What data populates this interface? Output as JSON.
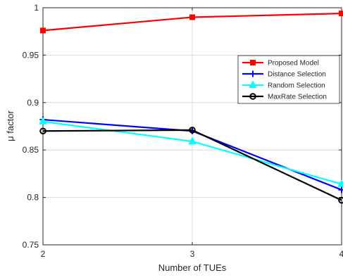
{
  "chart_data": {
    "type": "line",
    "xlabel": "Number of TUEs",
    "ylabel": "μ factor",
    "x": [
      2,
      3,
      4
    ],
    "xlim": [
      2,
      4
    ],
    "ylim": [
      0.75,
      1.0
    ],
    "x_ticks": [
      "2",
      "3",
      "4"
    ],
    "y_ticks": [
      "0.75",
      "0.8",
      "0.85",
      "0.9",
      "0.95",
      "1"
    ],
    "y_tick_values": [
      0.75,
      0.8,
      0.85,
      0.9,
      0.95,
      1.0
    ],
    "grid": true,
    "legend_position": "top-right",
    "series": [
      {
        "name": "Proposed Model",
        "values": [
          0.976,
          0.99,
          0.994
        ],
        "color": "#ff0000",
        "marker": "square"
      },
      {
        "name": "Distance Selection",
        "values": [
          0.882,
          0.87,
          0.808
        ],
        "color": "#0000ff",
        "marker": "plus"
      },
      {
        "name": "Random Selection",
        "values": [
          0.88,
          0.859,
          0.814
        ],
        "color": "#00ffff",
        "marker": "triangle"
      },
      {
        "name": "MaxRate Selection",
        "values": [
          0.87,
          0.871,
          0.797
        ],
        "color": "#000000",
        "marker": "circle"
      }
    ]
  }
}
